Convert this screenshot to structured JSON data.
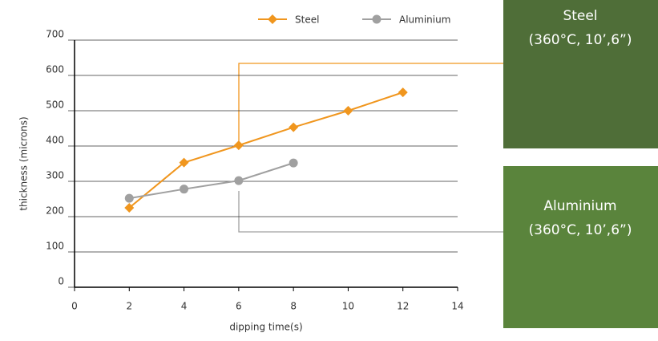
{
  "chart_data": {
    "type": "line",
    "x": [
      2,
      4,
      6,
      8,
      10,
      12
    ],
    "series": [
      {
        "name": "Steel",
        "color": "#f0961e",
        "marker": "diamond",
        "values": [
          225,
          353,
          402,
          453,
          500,
          552
        ]
      },
      {
        "name": "Aluminium",
        "color": "#a0a0a0",
        "marker": "circle",
        "values": [
          252,
          278,
          302,
          352,
          null,
          null
        ]
      }
    ],
    "xlim": [
      0,
      14
    ],
    "xticks": [
      0,
      2,
      4,
      6,
      8,
      10,
      12,
      14
    ],
    "ylim": [
      0,
      700
    ],
    "yticks": [
      0,
      100,
      200,
      300,
      400,
      500,
      600,
      700
    ],
    "xlabel": "dipping time(s)",
    "ylabel": "thickness (microns)",
    "grid": true,
    "legend": "top",
    "annotations": [
      {
        "lines": [
          "Steel",
          "(360°C, 10’,6”)"
        ],
        "color": "#4f6e38"
      },
      {
        "lines": [
          "Aluminium",
          "(360°C, 10’,6”)"
        ],
        "color": "#5a843c"
      }
    ]
  }
}
